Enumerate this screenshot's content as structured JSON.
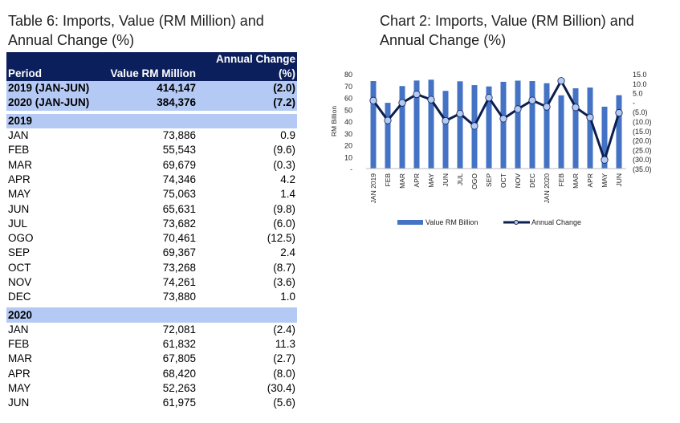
{
  "table": {
    "title": "Table 6: Imports, Value (RM Million) and Annual Change (%)",
    "headers": [
      "Period",
      "Value RM Million",
      "Annual Change (%)"
    ],
    "summary": [
      [
        "2019 (JAN-JUN)",
        "414,147",
        "(2.0)"
      ],
      [
        "2020 (JAN-JUN)",
        "384,376",
        "(7.2)"
      ]
    ],
    "groups": [
      {
        "year": "2019",
        "rows": [
          [
            "JAN",
            "73,886",
            "0.9"
          ],
          [
            "FEB",
            "55,543",
            "(9.6)"
          ],
          [
            "MAR",
            "69,679",
            "(0.3)"
          ],
          [
            "APR",
            "74,346",
            "4.2"
          ],
          [
            "MAY",
            "75,063",
            "1.4"
          ],
          [
            "JUN",
            "65,631",
            "(9.8)"
          ],
          [
            "JUL",
            "73,682",
            "(6.0)"
          ],
          [
            "OGO",
            "70,461",
            "(12.5)"
          ],
          [
            "SEP",
            "69,367",
            "2.4"
          ],
          [
            "OCT",
            "73,268",
            "(8.7)"
          ],
          [
            "NOV",
            "74,261",
            "(3.6)"
          ],
          [
            "DEC",
            "73,880",
            "1.0"
          ]
        ]
      },
      {
        "year": "2020",
        "rows": [
          [
            "JAN",
            "72,081",
            "(2.4)"
          ],
          [
            "FEB",
            "61,832",
            "11.3"
          ],
          [
            "MAR",
            "67,805",
            "(2.7)"
          ],
          [
            "APR",
            "68,420",
            "(8.0)"
          ],
          [
            "MAY",
            "52,263",
            "(30.4)"
          ],
          [
            "JUN",
            "61,975",
            "(5.6)"
          ]
        ]
      }
    ]
  },
  "chart_data": {
    "type": "bar+line",
    "title": "Chart 2: Imports, Value (RM Billion) and Annual Change (%)",
    "ylabel": "RM Billion",
    "ylim": [
      0,
      80
    ],
    "y_ticks": [
      "-",
      "10",
      "20",
      "30",
      "40",
      "50",
      "60",
      "70",
      "80"
    ],
    "y2lim": [
      -35,
      15
    ],
    "y2_ticks": [
      "(35.0)",
      "(30.0)",
      "(25.0)",
      "(20.0)",
      "(15.0)",
      "(10.0)",
      "(5.0)",
      "-",
      "5.0",
      "10.0",
      "15.0"
    ],
    "categories": [
      "JAN 2019",
      "FEB",
      "MAR",
      "APR",
      "MAY",
      "JUN",
      "JUL",
      "OGO",
      "SEP",
      "OCT",
      "NOV",
      "DEC",
      "JAN 2020",
      "FEB",
      "MAR",
      "APR",
      "MAY",
      "JUN"
    ],
    "series": [
      {
        "name": "Value RM Billion",
        "type": "bar",
        "axis": "left",
        "color": "#4472c4",
        "values": [
          73.886,
          55.543,
          69.679,
          74.346,
          75.063,
          65.631,
          73.682,
          70.461,
          69.367,
          73.268,
          74.261,
          73.88,
          72.081,
          61.832,
          67.805,
          68.42,
          52.263,
          61.975
        ]
      },
      {
        "name": "Annual Change",
        "type": "line",
        "axis": "right",
        "color": "#0b1f4f",
        "marker_color": "#b4c9f3",
        "values": [
          0.9,
          -9.6,
          -0.3,
          4.2,
          1.4,
          -9.8,
          -6.0,
          -12.5,
          2.4,
          -8.7,
          -3.6,
          1.0,
          -2.4,
          11.3,
          -2.7,
          -8.0,
          -30.4,
          -5.6
        ]
      }
    ],
    "legend": "bottom"
  }
}
